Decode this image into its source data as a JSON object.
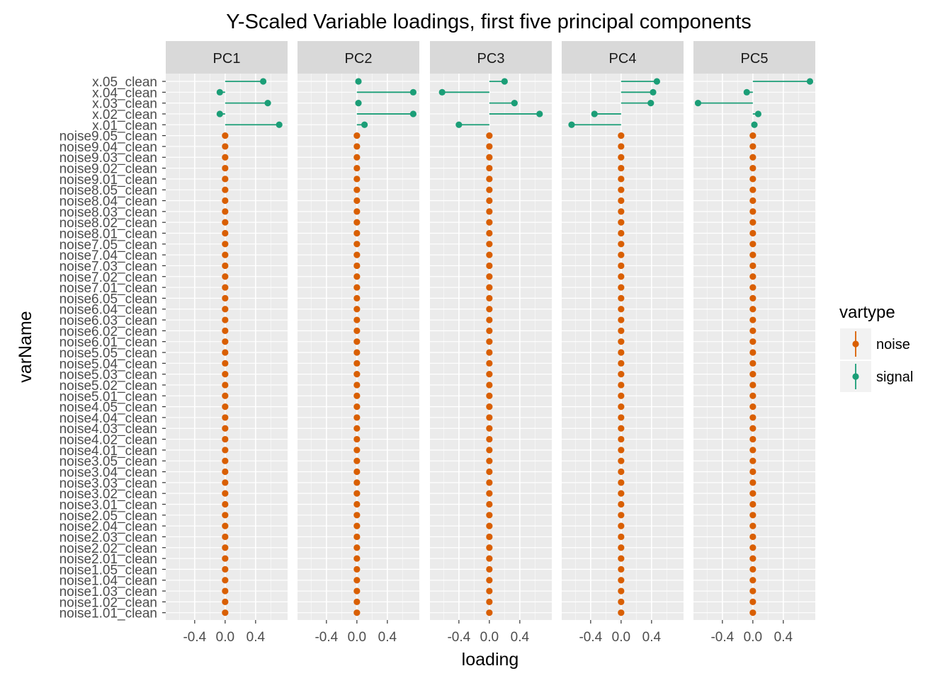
{
  "chart_data": {
    "type": "faceted-dot-stem",
    "title": "Y-Scaled Variable loadings, first five principal components",
    "xlabel": "loading",
    "ylabel": "varName",
    "xlim": [
      -0.78,
      0.82
    ],
    "x_ticks": [
      -0.4,
      0.0,
      0.4
    ],
    "x_tick_labels": [
      "-0.4",
      "0.0",
      "0.4"
    ],
    "grid": true,
    "legend": {
      "title": "vartype",
      "position": "right",
      "entries": [
        {
          "label": "noise",
          "color": "#d95f02"
        },
        {
          "label": "signal",
          "color": "#1b9e77"
        }
      ]
    },
    "facets": [
      "PC1",
      "PC2",
      "PC3",
      "PC4",
      "PC5"
    ],
    "variables": [
      "x.05_clean",
      "x.04_clean",
      "x.03_clean",
      "x.02_clean",
      "x.01_clean",
      "noise9.05_clean",
      "noise9.04_clean",
      "noise9.03_clean",
      "noise9.02_clean",
      "noise9.01_clean",
      "noise8.05_clean",
      "noise8.04_clean",
      "noise8.03_clean",
      "noise8.02_clean",
      "noise8.01_clean",
      "noise7.05_clean",
      "noise7.04_clean",
      "noise7.03_clean",
      "noise7.02_clean",
      "noise7.01_clean",
      "noise6.05_clean",
      "noise6.04_clean",
      "noise6.03_clean",
      "noise6.02_clean",
      "noise6.01_clean",
      "noise5.05_clean",
      "noise5.04_clean",
      "noise5.03_clean",
      "noise5.02_clean",
      "noise5.01_clean",
      "noise4.05_clean",
      "noise4.04_clean",
      "noise4.03_clean",
      "noise4.02_clean",
      "noise4.01_clean",
      "noise3.05_clean",
      "noise3.04_clean",
      "noise3.03_clean",
      "noise3.02_clean",
      "noise3.01_clean",
      "noise2.05_clean",
      "noise2.04_clean",
      "noise2.03_clean",
      "noise2.02_clean",
      "noise2.01_clean",
      "noise1.05_clean",
      "noise1.04_clean",
      "noise1.03_clean",
      "noise1.02_clean",
      "noise1.01_clean"
    ],
    "signal_loadings": {
      "note": "values in variable order x.05, x.04, x.03, x.02, x.01; all noise variables have loading 0.0",
      "PC1": [
        0.5,
        -0.07,
        0.56,
        -0.07,
        0.71
      ],
      "PC2": [
        0.02,
        0.74,
        0.02,
        0.74,
        0.1
      ],
      "PC3": [
        0.2,
        -0.62,
        0.33,
        0.66,
        -0.4
      ],
      "PC4": [
        0.47,
        0.42,
        0.39,
        -0.35,
        -0.65
      ],
      "PC5": [
        0.75,
        -0.08,
        -0.72,
        0.07,
        0.02
      ]
    },
    "noise_loading": 0.0
  }
}
